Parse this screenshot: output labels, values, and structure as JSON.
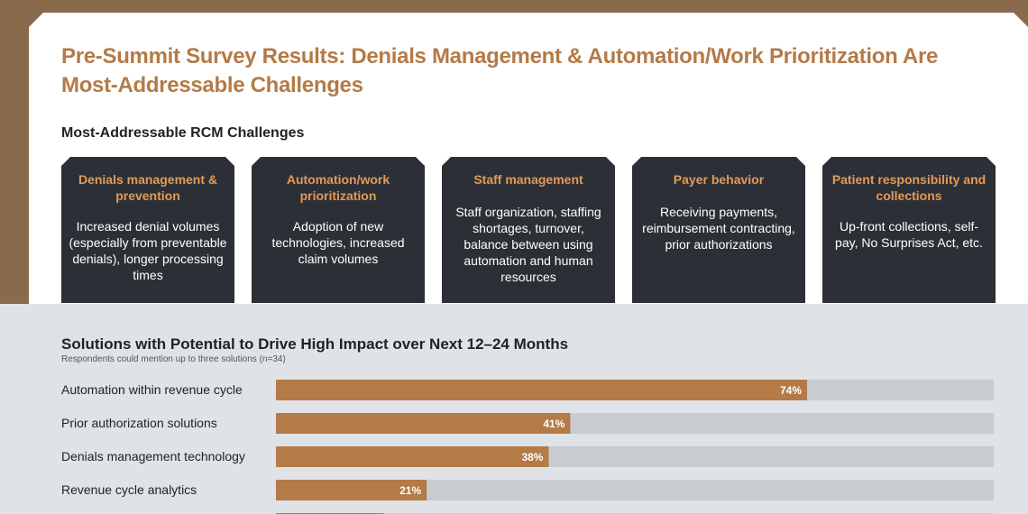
{
  "header": {
    "title": "Pre-Summit Survey Results: Denials Management & Automation/Work Prioritization Are Most-Addressable Challenges"
  },
  "challenges": {
    "heading": "Most-Addressable RCM Challenges",
    "cards": [
      {
        "title": "Denials management & prevention",
        "desc": "Increased denial volumes (especially from preventable denials), longer processing times"
      },
      {
        "title": "Automation/work prioritization",
        "desc": "Adoption of new technologies, increased claim volumes"
      },
      {
        "title": "Staff management",
        "desc": "Staff organization, staffing shortages, turnover, balance between using automation and human resources"
      },
      {
        "title": "Payer behavior",
        "desc": "Receiving payments, reimbursement contracting, prior authorizations"
      },
      {
        "title": "Patient responsibility and collections",
        "desc": "Up-front collections, self-pay, No Surprises Act, etc."
      }
    ]
  },
  "chart_data": {
    "type": "bar",
    "orientation": "horizontal",
    "title": "Solutions with Potential to Drive High Impact over Next 12–24 Months",
    "subtitle": "Respondents could mention up to three solutions (n=34)",
    "categories": [
      "Automation within revenue cycle",
      "Prior authorization solutions",
      "Denials management technology",
      "Revenue cycle analytics"
    ],
    "values": [
      74,
      41,
      38,
      21
    ],
    "value_labels": [
      "74%",
      "41%",
      "38%",
      "21%"
    ],
    "partial_next_value": 15,
    "xlim": [
      0,
      100
    ],
    "colors": {
      "bar": "#b47a47",
      "track": "#c8ccd0"
    }
  }
}
